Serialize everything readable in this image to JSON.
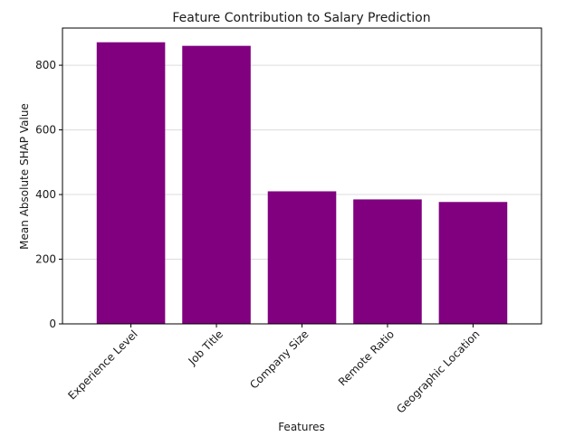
{
  "chart_data": {
    "type": "bar",
    "title": "Feature Contribution to Salary Prediction",
    "xlabel": "Features",
    "ylabel": "Mean Absolute SHAP Value",
    "categories": [
      "Experience Level",
      "Job Title",
      "Company Size",
      "Remote Ratio",
      "Geographic Location"
    ],
    "values": [
      871,
      860,
      410,
      385,
      377
    ],
    "ylim": [
      0,
      915
    ],
    "yticks": [
      0,
      200,
      400,
      600,
      800
    ],
    "ytick_labels": [
      "0",
      "200",
      "400",
      "600",
      "800"
    ],
    "grid": "horizontal",
    "bar_color": "#800080"
  }
}
